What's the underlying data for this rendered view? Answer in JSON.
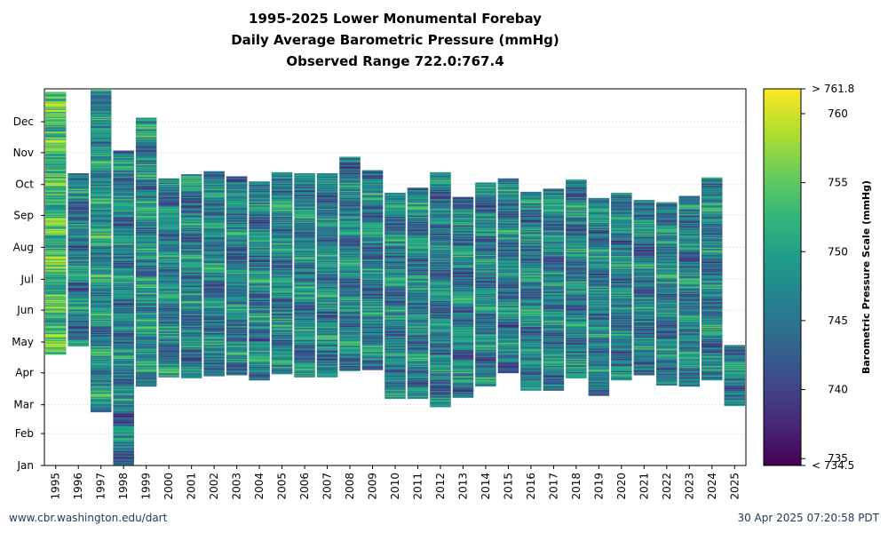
{
  "chart_data": {
    "type": "heatmap",
    "title": [
      "1995-2025 Lower Monumental Forebay",
      "Daily Average Barometric Pressure (mmHg)",
      "Observed Range 722.0:767.4"
    ],
    "years": [
      "1995",
      "1996",
      "1997",
      "1998",
      "1999",
      "2000",
      "2001",
      "2002",
      "2003",
      "2004",
      "2005",
      "2006",
      "2007",
      "2008",
      "2009",
      "2010",
      "2011",
      "2012",
      "2013",
      "2014",
      "2015",
      "2016",
      "2017",
      "2018",
      "2019",
      "2020",
      "2021",
      "2022",
      "2023",
      "2024",
      "2025"
    ],
    "month_ticks": [
      "Jan",
      "Feb",
      "Mar",
      "Apr",
      "May",
      "Jun",
      "Jul",
      "Aug",
      "Sep",
      "Oct",
      "Nov",
      "Dec"
    ],
    "coverage_day_of_year": [
      {
        "year": "1995",
        "start": 109,
        "end": 363
      },
      {
        "year": "1996",
        "start": 117,
        "end": 284
      },
      {
        "year": "1997",
        "start": 53,
        "end": 365
      },
      {
        "year": "1998",
        "start": 1,
        "end": 306
      },
      {
        "year": "1999",
        "start": 78,
        "end": 338
      },
      {
        "year": "2000",
        "start": 87,
        "end": 279
      },
      {
        "year": "2001",
        "start": 86,
        "end": 283
      },
      {
        "year": "2002",
        "start": 88,
        "end": 286
      },
      {
        "year": "2003",
        "start": 89,
        "end": 281
      },
      {
        "year": "2004",
        "start": 84,
        "end": 276
      },
      {
        "year": "2005",
        "start": 90,
        "end": 285
      },
      {
        "year": "2006",
        "start": 87,
        "end": 284
      },
      {
        "year": "2007",
        "start": 87,
        "end": 284
      },
      {
        "year": "2008",
        "start": 93,
        "end": 300
      },
      {
        "year": "2009",
        "start": 94,
        "end": 287
      },
      {
        "year": "2010",
        "start": 66,
        "end": 265
      },
      {
        "year": "2011",
        "start": 66,
        "end": 270
      },
      {
        "year": "2012",
        "start": 58,
        "end": 285
      },
      {
        "year": "2013",
        "start": 67,
        "end": 261
      },
      {
        "year": "2014",
        "start": 78,
        "end": 275
      },
      {
        "year": "2015",
        "start": 91,
        "end": 279
      },
      {
        "year": "2016",
        "start": 74,
        "end": 266
      },
      {
        "year": "2017",
        "start": 74,
        "end": 269
      },
      {
        "year": "2018",
        "start": 86,
        "end": 278
      },
      {
        "year": "2019",
        "start": 69,
        "end": 260
      },
      {
        "year": "2020",
        "start": 84,
        "end": 265
      },
      {
        "year": "2021",
        "start": 89,
        "end": 258
      },
      {
        "year": "2022",
        "start": 79,
        "end": 256
      },
      {
        "year": "2023",
        "start": 78,
        "end": 262
      },
      {
        "year": "2024",
        "start": 84,
        "end": 280
      },
      {
        "year": "2025",
        "start": 59,
        "end": 117
      }
    ],
    "colorbar": {
      "label": "Barometric Pressure Scale (mmHg)",
      "min": 734.5,
      "max": 761.8,
      "ticks": [
        735,
        740,
        745,
        750,
        755,
        760
      ],
      "min_label": "< 734.5",
      "max_label": "> 761.8",
      "colormap": "viridis"
    },
    "grid": "horizontal dotted"
  },
  "footer": {
    "left": "www.cbr.washington.edu/dart",
    "right": "30 Apr 2025 07:20:58 PDT"
  }
}
